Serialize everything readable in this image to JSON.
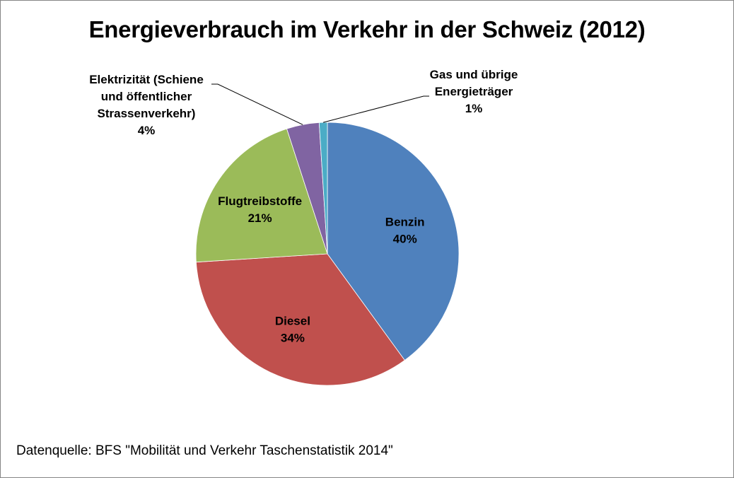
{
  "chart_data": {
    "type": "pie",
    "title": "Energieverbrauch im Verkehr in der Schweiz (2012)",
    "source": "Datenquelle:  BFS \"Mobilität und Verkehr Taschenstatistik 2014\"",
    "start_angle": "12 o'clock",
    "direction": "clockwise",
    "slices": [
      {
        "label": "Benzin",
        "label_lines": [
          "Benzin"
        ],
        "value": 40,
        "pct_label": "40%",
        "color": "#4F81BD",
        "label_pos": "inside"
      },
      {
        "label": "Diesel",
        "label_lines": [
          "Diesel"
        ],
        "value": 34,
        "pct_label": "34%",
        "color": "#C0504D",
        "label_pos": "inside"
      },
      {
        "label": "Flugtreibstoffe",
        "label_lines": [
          "Flugtreibstoffe"
        ],
        "value": 21,
        "pct_label": "21%",
        "color": "#9BBB59",
        "label_pos": "inside"
      },
      {
        "label": "Elektrizität (Schiene und öffentlicher Strassenverkehr)",
        "label_lines": [
          "Elektrizität (Schiene",
          "und öffentlicher",
          "Strassenverkehr)"
        ],
        "value": 4,
        "pct_label": "4%",
        "color": "#8064A2",
        "label_pos": "outside-left"
      },
      {
        "label": "Gas und übrige Energieträger",
        "label_lines": [
          "Gas und übrige",
          "Energieträger"
        ],
        "value": 1,
        "pct_label": "1%",
        "color": "#4BACC6",
        "label_pos": "outside-right"
      }
    ]
  }
}
